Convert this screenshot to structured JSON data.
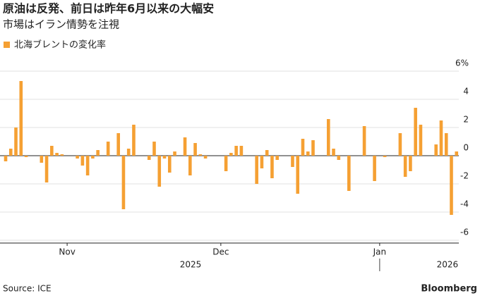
{
  "chart_data": {
    "type": "bar",
    "title": "原油は反発、前日は昨年6月以来の大幅安",
    "subtitle": "市場はイラン情勢を注視",
    "series": [
      {
        "name": "北海ブレントの変化率",
        "color": "#f5a033",
        "values": [
          -0.4,
          0.5,
          2.0,
          5.3,
          -0.1,
          0,
          0,
          -0.5,
          -1.9,
          0.7,
          0.2,
          0.1,
          0,
          0,
          -0.2,
          -0.7,
          -1.4,
          -0.2,
          0.4,
          0,
          1.0,
          0,
          1.6,
          -3.8,
          0.5,
          2.2,
          0,
          0,
          -0.3,
          1.0,
          -2.2,
          -0.2,
          -1.2,
          0.3,
          0,
          1.3,
          -1.4,
          0.9,
          0.1,
          -0.2,
          0,
          0,
          0,
          -1.1,
          0.2,
          0.7,
          0.7,
          0,
          0,
          -2.0,
          -0.9,
          0.4,
          -1.6,
          -0.3,
          0,
          0,
          -0.8,
          -2.7,
          1.2,
          0.3,
          1.1,
          0,
          0,
          2.6,
          0.5,
          -0.3,
          0,
          -2.5,
          0,
          0,
          2.1,
          0,
          -1.8,
          0,
          -0.1,
          0,
          0,
          1.6,
          -1.5,
          -1.1,
          3.4,
          2.2,
          0,
          0,
          0.8,
          2.5,
          1.6,
          -4.2,
          0.3
        ]
      }
    ],
    "categories": [
      null,
      null,
      null,
      null,
      null,
      null,
      null,
      null,
      null,
      null,
      null,
      null,
      "Nov",
      null,
      null,
      null,
      null,
      null,
      null,
      null,
      null,
      null,
      null,
      null,
      null,
      null,
      null,
      null,
      null,
      null,
      null,
      null,
      null,
      null,
      null,
      null,
      null,
      null,
      null,
      null,
      null,
      null,
      "Dec",
      null,
      null,
      null,
      null,
      null,
      null,
      null,
      null,
      null,
      null,
      null,
      null,
      null,
      null,
      null,
      null,
      null,
      null,
      null,
      null,
      null,
      null,
      null,
      null,
      null,
      null,
      null,
      null,
      null,
      null,
      "Jan",
      null,
      null,
      null,
      null,
      null,
      null,
      null,
      null,
      null,
      null,
      null,
      null,
      null,
      null,
      null
    ],
    "year_labels": [
      "2025",
      "2026"
    ],
    "ylim": [
      -6.2,
      7
    ],
    "yticks": [
      {
        "value": 6,
        "label": "6%"
      },
      4,
      2,
      0,
      -2,
      -4,
      -6
    ],
    "grid": true,
    "source": "Source: ICE",
    "brand": "Bloomberg"
  }
}
